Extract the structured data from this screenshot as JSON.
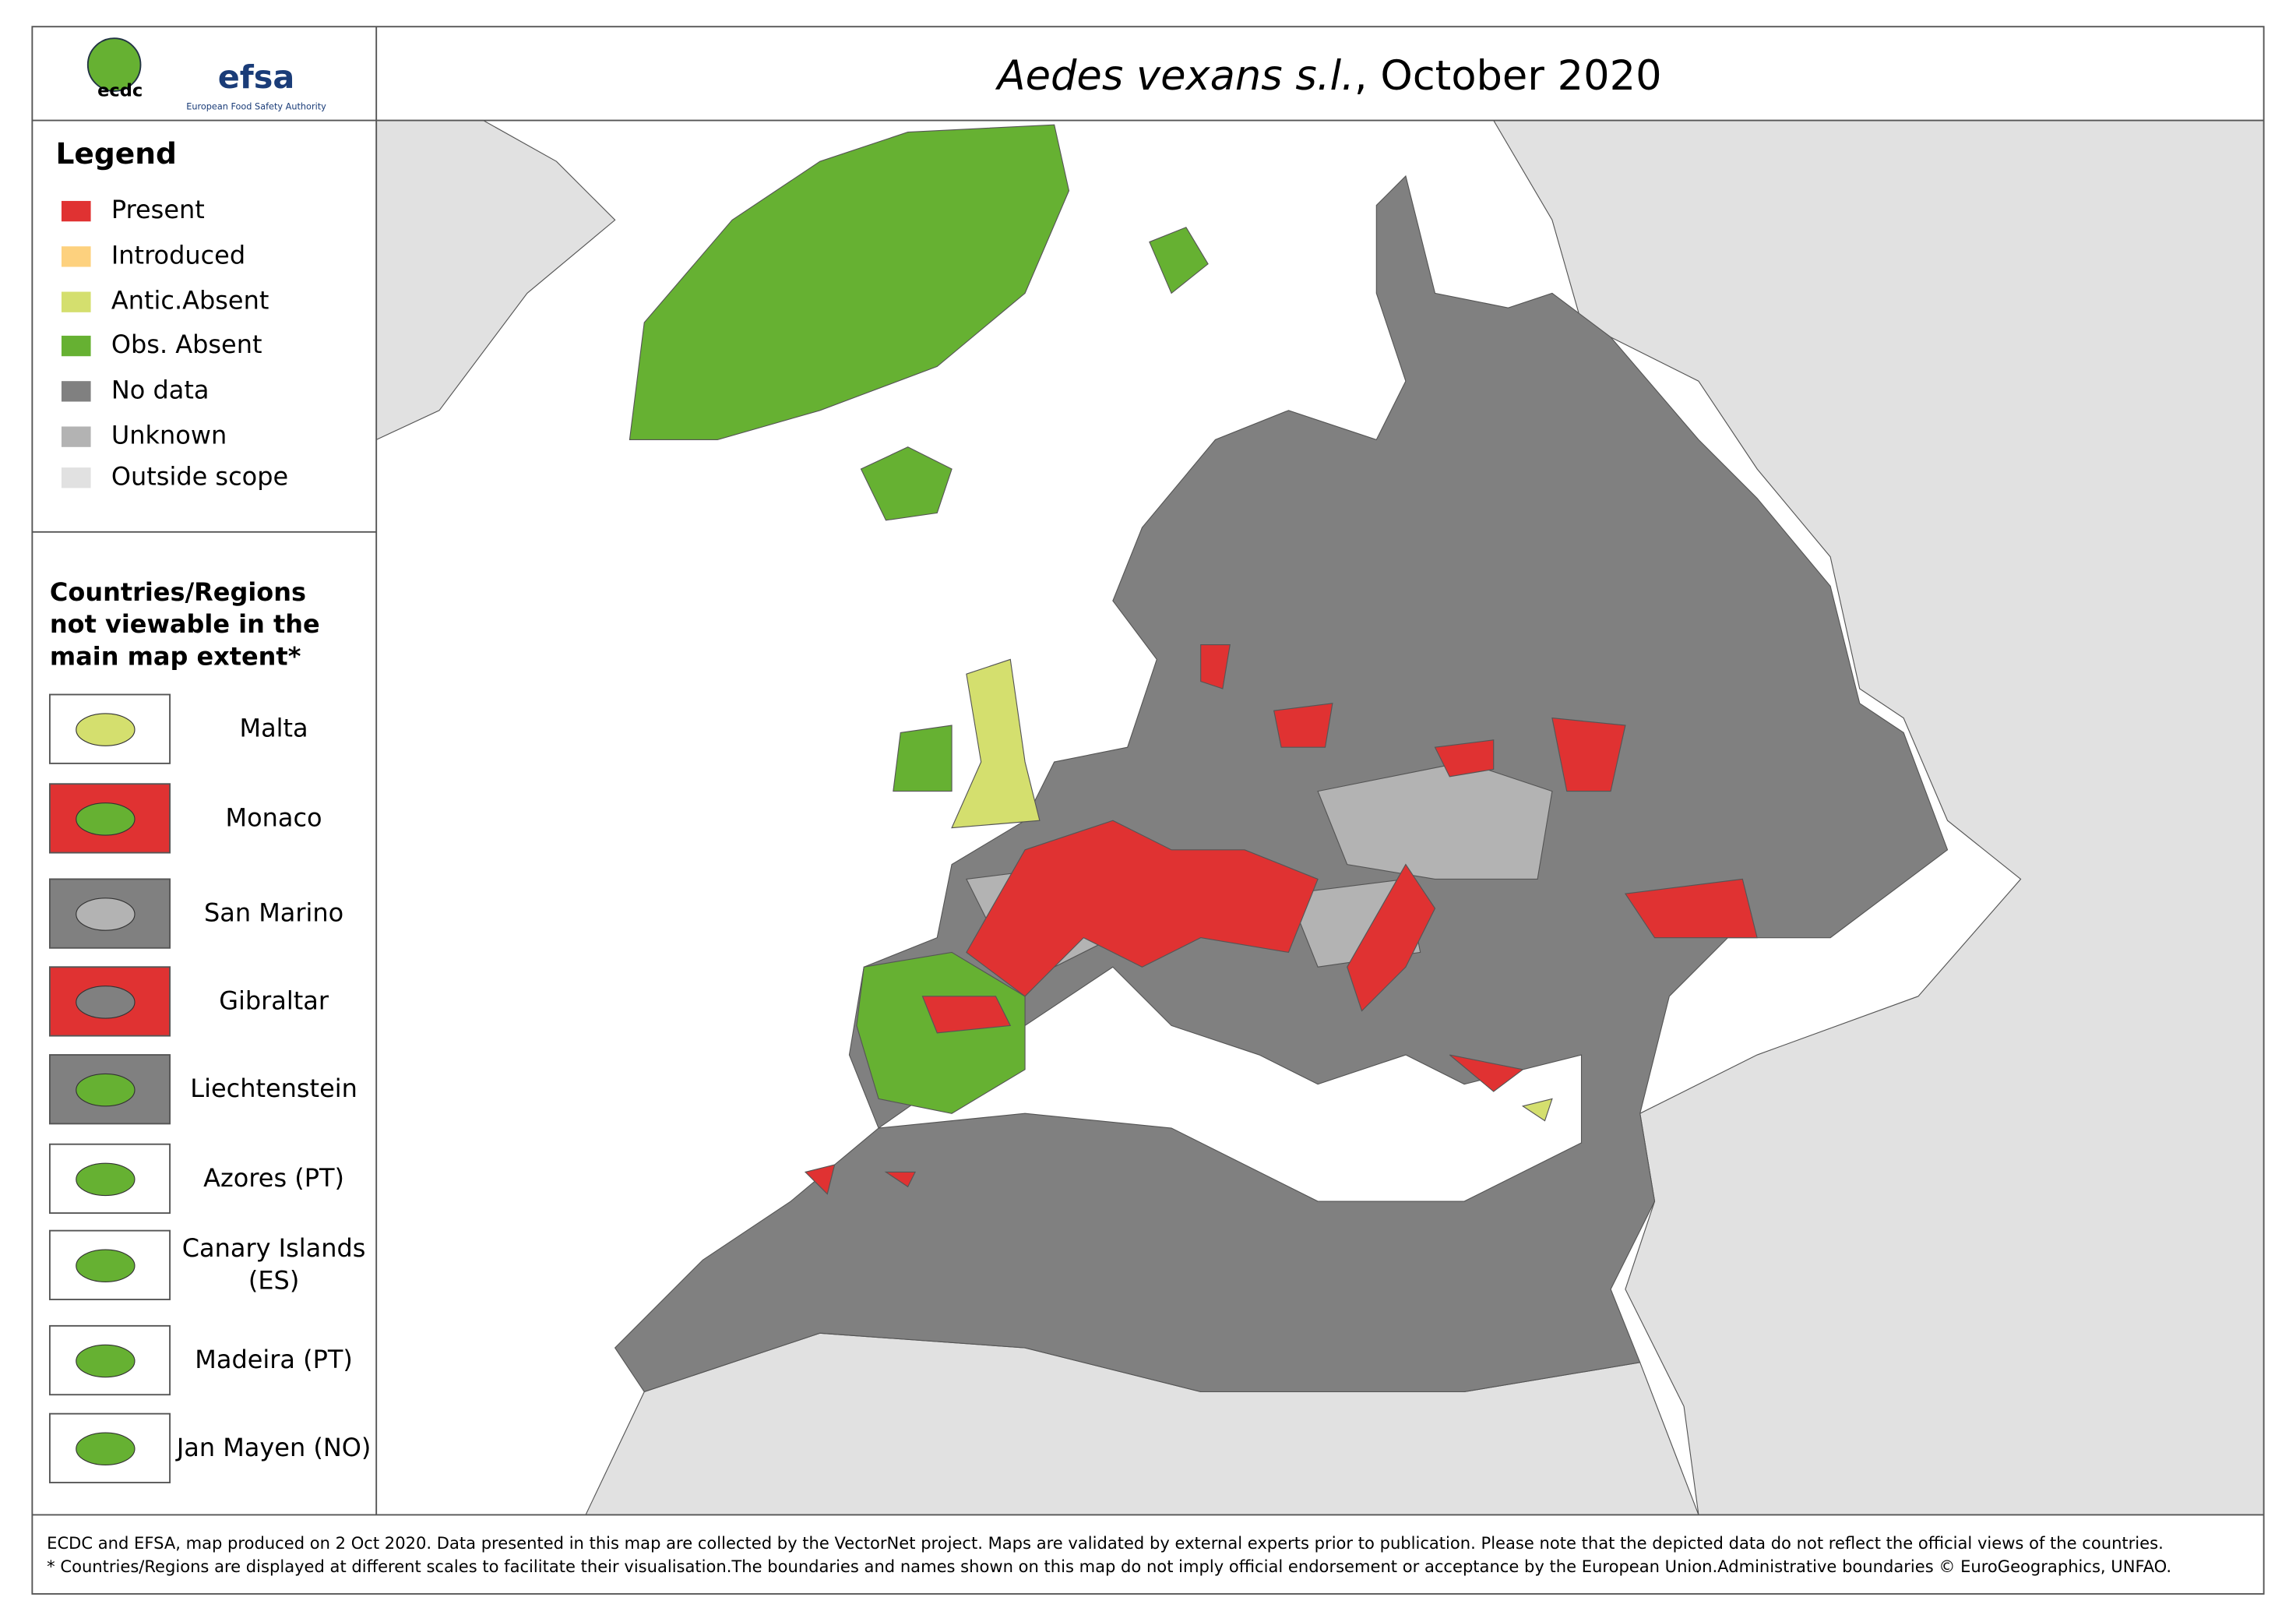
{
  "header": {
    "title_species": "Aedes vexans s.l.",
    "title_date": ", October 2020",
    "logo_ecdc": "ecdc",
    "logo_efsa": "efsa",
    "logo_efsa_sub": "European Food Safety Authority"
  },
  "legend": {
    "title": "Legend",
    "items": [
      {
        "label": "Present",
        "color": "#e03232"
      },
      {
        "label": "Introduced",
        "color": "#fdd17e"
      },
      {
        "label": "Antic.Absent",
        "color": "#d4df6e"
      },
      {
        "label": "Obs. Absent",
        "color": "#66b132"
      },
      {
        "label": "No data",
        "color": "#808080"
      },
      {
        "label": "Unknown",
        "color": "#b3b3b3"
      },
      {
        "label": "Outside scope",
        "color": "#e1e1e1"
      }
    ]
  },
  "insets": {
    "title_lines": [
      "Countries/Regions",
      "not viewable in the",
      "main map extent*"
    ],
    "items": [
      {
        "label": [
          "Malta"
        ]
      },
      {
        "label": [
          "Monaco"
        ]
      },
      {
        "label": [
          "San Marino"
        ]
      },
      {
        "label": [
          "Gibraltar"
        ]
      },
      {
        "label": [
          "Liechtenstein"
        ]
      },
      {
        "label": [
          "Azores (PT)"
        ]
      },
      {
        "label": [
          "Canary Islands",
          "(ES)"
        ]
      },
      {
        "label": [
          "Madeira (PT)"
        ]
      },
      {
        "label": [
          "Jan Mayen (NO)"
        ]
      }
    ]
  },
  "footer": {
    "lines": [
      "ECDC and EFSA, map produced on 2 Oct 2020. Data presented in this map are collected by the VectorNet project. Maps are validated by external experts prior to publication. Please note that the depicted data do not reflect the official views of the countries.",
      "* Countries/Regions are displayed at different scales to facilitate their visualisation.The boundaries and names shown on this map do not imply official endorsement or acceptance by the European Union.Administrative boundaries © EuroGeographics, UNFAO."
    ]
  }
}
